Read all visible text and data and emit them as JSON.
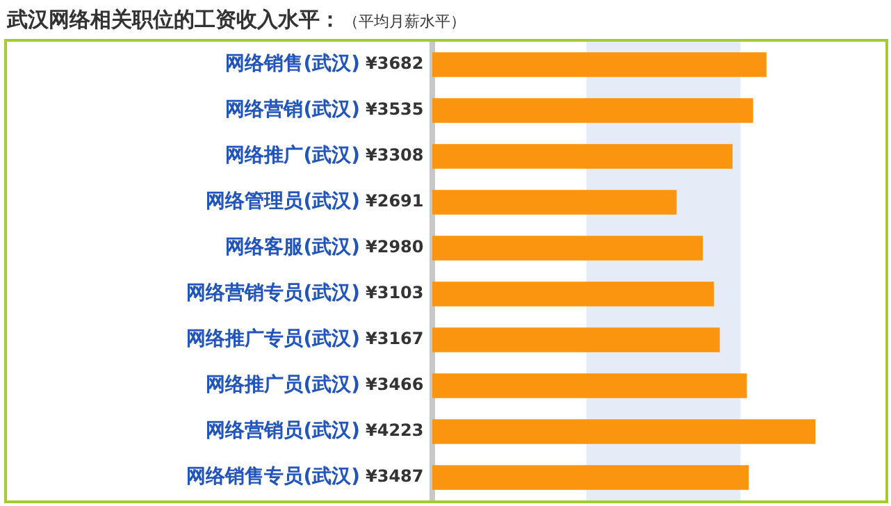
{
  "chart_data": {
    "type": "bar",
    "orientation": "horizontal",
    "title": "武汉网络相关职位的工资收入水平：",
    "subtitle": "（平均月薪水平）",
    "categories": [
      "网络销售(武汉)",
      "网络营销(武汉)",
      "网络推广(武汉)",
      "网络管理员(武汉)",
      "网络客服(武汉)",
      "网络营销专员(武汉)",
      "网络推广专员(武汉)",
      "网络推广员(武汉)",
      "网络营销员(武汉)",
      "网络销售专员(武汉)"
    ],
    "values": [
      3682,
      3535,
      3308,
      2691,
      2980,
      3103,
      3167,
      3466,
      4223,
      3487
    ],
    "value_labels": [
      "¥3682",
      "¥3535",
      "¥3308",
      "¥2691",
      "¥2980",
      "¥3103",
      "¥3167",
      "¥3466",
      "¥4223",
      "¥3487"
    ],
    "color": "#fb940f",
    "xlim": [
      0,
      5000
    ],
    "bands": [
      {
        "axis": "x",
        "from": 1700,
        "to": 3400,
        "color": "#e6ecf7"
      }
    ]
  }
}
